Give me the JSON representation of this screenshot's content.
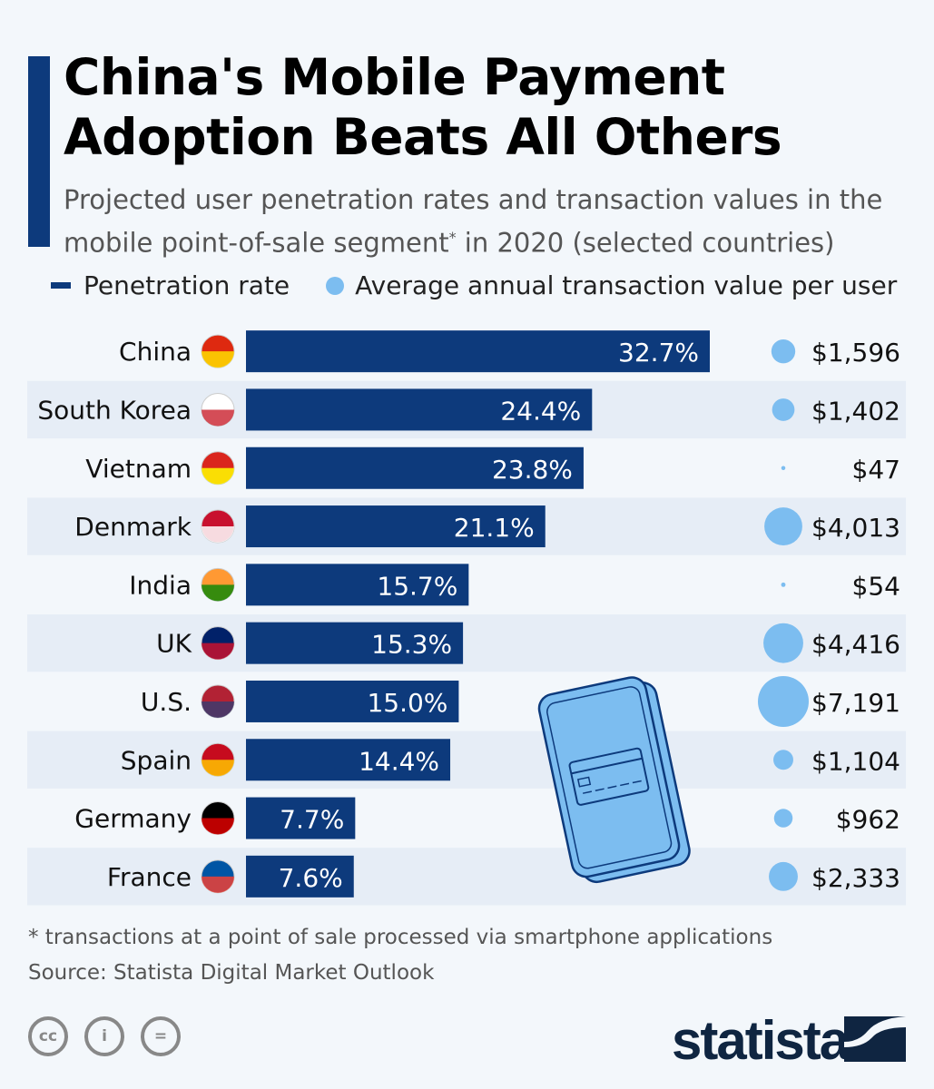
{
  "title_line1": "China's Mobile Payment",
  "title_line2": "Adoption Beats All Others",
  "subtitle_a": "Projected user penetration rates and transaction values in the mobile point-of-sale segment",
  "subtitle_sup": "*",
  "subtitle_b": " in 2020 (selected countries)",
  "footnote": "* transactions at a point of sale processed via smartphone applications",
  "source": "Source: Statista Digital Market Outlook",
  "license_icons": [
    "cc-icon",
    "attribution-icon",
    "no-derivatives-icon"
  ],
  "license_labels": [
    "cc",
    "i",
    "="
  ],
  "logo_text": "statista",
  "colors": {
    "bar": "#0d3a7c",
    "bubble": "#7cbdf0",
    "stripe": "#e6edf6",
    "background": "#f3f7fb"
  },
  "chart_data": {
    "type": "bar",
    "categories": [
      "China",
      "South Korea",
      "Vietnam",
      "Denmark",
      "India",
      "UK",
      "U.S.",
      "Spain",
      "Germany",
      "France"
    ],
    "series": [
      {
        "name": "Penetration rate",
        "unit": "%",
        "values": [
          32.7,
          24.4,
          23.8,
          21.1,
          15.7,
          15.3,
          15.0,
          14.4,
          7.7,
          7.6
        ],
        "labels": [
          "32.7%",
          "24.4%",
          "23.8%",
          "21.1%",
          "15.7%",
          "15.3%",
          "15.0%",
          "14.4%",
          "7.7%",
          "7.6%"
        ]
      },
      {
        "name": "Average annual transaction value per user",
        "unit": "USD",
        "type": "bubble",
        "values": [
          1596,
          1402,
          47,
          4013,
          54,
          4416,
          7191,
          1104,
          962,
          2333
        ],
        "labels": [
          "$1,596",
          "$1,402",
          "$47",
          "$4,013",
          "$54",
          "$4,416",
          "$7,191",
          "$1,104",
          "$962",
          "$2,333"
        ]
      }
    ],
    "flags": [
      "china-flag-icon",
      "south-korea-flag-icon",
      "vietnam-flag-icon",
      "denmark-flag-icon",
      "india-flag-icon",
      "uk-flag-icon",
      "us-flag-icon",
      "spain-flag-icon",
      "germany-flag-icon",
      "france-flag-icon"
    ],
    "legend": "top-left",
    "grid": false
  }
}
